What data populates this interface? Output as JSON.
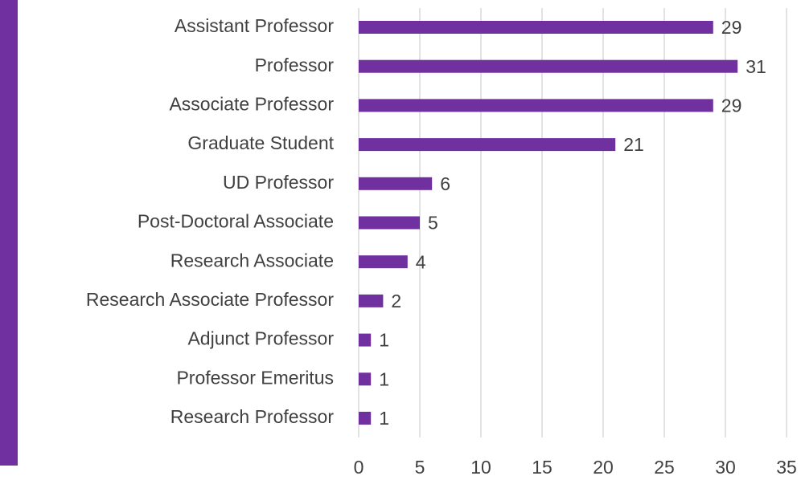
{
  "chart_data": {
    "type": "barh",
    "categories": [
      "Assistant Professor",
      "Professor",
      "Associate Professor",
      "Graduate Student",
      "UD Professor",
      "Post-Doctoral Associate",
      "Research Associate",
      "Research Associate Professor",
      "Adjunct Professor",
      "Professor Emeritus",
      "Research Professor"
    ],
    "values": [
      29,
      31,
      29,
      21,
      6,
      5,
      4,
      2,
      1,
      1,
      1
    ],
    "color": "#7030a0",
    "xlim": [
      0,
      35
    ],
    "xticks": [
      0,
      5,
      10,
      15,
      20,
      25,
      30,
      35
    ],
    "grid": true
  }
}
